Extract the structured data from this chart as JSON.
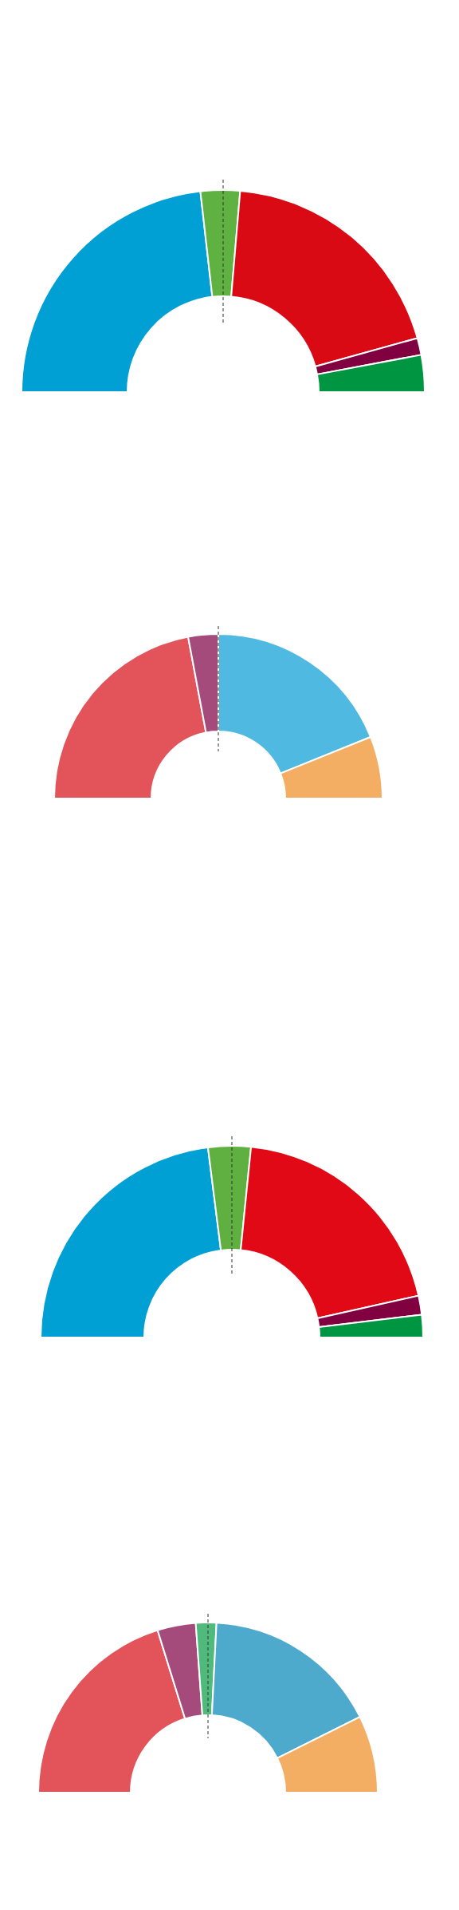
{
  "chart_data": [
    {
      "type": "donut",
      "categories": [
        null,
        null,
        null,
        null,
        null
      ],
      "values": [
        46.4,
        6.3,
        38.7,
        2.7,
        5.9
      ],
      "colors": [
        "#009fd4",
        "#5fb141",
        "#d90a14",
        "#800040",
        "#009540"
      ]
    },
    {
      "type": "donut",
      "categories": [
        null,
        null,
        null,
        null
      ],
      "values": [
        44.1,
        5.9,
        37.8,
        12.2
      ],
      "colors": [
        "#e3535a",
        "#a54b7b",
        "#4fb9e1",
        "#f4ae63"
      ]
    },
    {
      "type": "donut",
      "categories": [
        null,
        null,
        null,
        null,
        null
      ],
      "values": [
        46.0,
        7.2,
        39.8,
        3.2,
        3.8
      ],
      "colors": [
        "#009fd4",
        "#5fb041",
        "#e10915",
        "#800040",
        "#009540"
      ]
    },
    {
      "type": "donut",
      "categories": [
        null,
        null,
        null,
        null,
        null
      ],
      "values": [
        40.4,
        7.3,
        3.9,
        33.7,
        14.7
      ],
      "colors": [
        "#e3535a",
        "#a54b7b",
        "#50b97c",
        "#4eaacc",
        "#f4ae63"
      ]
    }
  ]
}
